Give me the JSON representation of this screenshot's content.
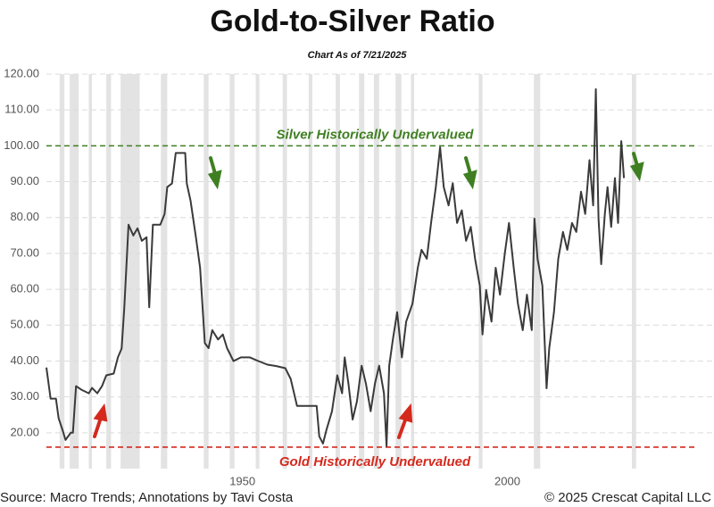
{
  "chart_data": {
    "type": "line",
    "title": "Gold-to-Silver Ratio",
    "subtitle": "Chart As of 7/21/2025",
    "source": "Source: Macro Trends; Annotations by Tavi Costa",
    "credit": "© 2025 Crescat Capital LLC",
    "xlim": [
      1913,
      2039
    ],
    "xticks": [
      1950,
      2000
    ],
    "ylim": [
      10,
      120
    ],
    "yticks": [
      {
        "value": 20,
        "label": "20.00"
      },
      {
        "value": 30,
        "label": "30.00"
      },
      {
        "value": 40,
        "label": "40.00"
      },
      {
        "value": 50,
        "label": "50.00"
      },
      {
        "value": 60,
        "label": "60.00"
      },
      {
        "value": 70,
        "label": "70.00"
      },
      {
        "value": 80,
        "label": "80.00"
      },
      {
        "value": 90,
        "label": "90.00"
      },
      {
        "value": 100,
        "label": "100.00"
      },
      {
        "value": 110,
        "label": "110.00"
      },
      {
        "value": 120,
        "label": "120.00"
      }
    ],
    "grid": true,
    "reference_lines": [
      {
        "value": 100,
        "label": "Silver Historically Undervalued",
        "color": "#3f7f22"
      },
      {
        "value": 16,
        "label": "Gold Historically Undervalued",
        "color": "#d42a1e"
      }
    ],
    "shaded_periods": [
      [
        1915.5,
        1916.4
      ],
      [
        1917.4,
        1919.1
      ],
      [
        1921.0,
        1921.6
      ],
      [
        1924.3,
        1925.2
      ],
      [
        1927.0,
        1930.6
      ],
      [
        1934.6,
        1935.8
      ],
      [
        1942.7,
        1943.6
      ],
      [
        1947.6,
        1948.5
      ],
      [
        1952.5,
        1953.2
      ],
      [
        1957.6,
        1958.4
      ],
      [
        1962.5,
        1963.2
      ],
      [
        1967.6,
        1968.4
      ],
      [
        1972.0,
        1973.0
      ],
      [
        1974.8,
        1975.8
      ],
      [
        1978.9,
        1980.0
      ],
      [
        1981.8,
        1982.4
      ],
      [
        1994.6,
        1995.3
      ],
      [
        2005.0,
        2006.2
      ],
      [
        2023.5,
        2024.3
      ]
    ],
    "x": [
      1913.0,
      1913.8,
      1914.8,
      1915.3,
      1916.0,
      1916.6,
      1917.6,
      1918.0,
      1918.6,
      1919.6,
      1921.0,
      1921.6,
      1922.6,
      1923.5,
      1924.3,
      1925.7,
      1926.5,
      1927.2,
      1927.7,
      1928.5,
      1929.4,
      1930.2,
      1931.0,
      1931.9,
      1932.4,
      1933.1,
      1934.5,
      1935.3,
      1935.8,
      1936.7,
      1937.4,
      1939.2,
      1939.5,
      1940.2,
      1941.2,
      1942.0,
      1942.9,
      1943.6,
      1944.3,
      1945.4,
      1946.3,
      1947.1,
      1948.3,
      1949.7,
      1951.4,
      1953.0,
      1954.7,
      1956.4,
      1958.1,
      1959.1,
      1960.3,
      1962.3,
      1964.0,
      1964.5,
      1965.2,
      1965.9,
      1966.9,
      1967.9,
      1968.8,
      1969.3,
      1970.0,
      1970.8,
      1971.6,
      1972.5,
      1973.3,
      1974.2,
      1975.0,
      1975.8,
      1976.7,
      1977.2,
      1977.7,
      1978.4,
      1979.2,
      1980.1,
      1980.9,
      1982.1,
      1983.1,
      1983.8,
      1984.8,
      1985.6,
      1986.5,
      1987.3,
      1988.0,
      1988.9,
      1989.7,
      1990.5,
      1991.4,
      1992.2,
      1993.1,
      1993.9,
      1994.8,
      1995.3,
      1996.0,
      1997.0,
      1997.8,
      1998.6,
      1999.5,
      2000.3,
      2001.2,
      2002.0,
      2002.9,
      2003.7,
      2004.6,
      2005.1,
      2005.7,
      2006.6,
      2007.4,
      2007.9,
      2008.8,
      2009.6,
      2010.5,
      2011.3,
      2012.2,
      2013.0,
      2013.9,
      2014.7,
      2015.5,
      2016.2,
      2016.7,
      2017.2,
      2017.7,
      2018.4,
      2018.9,
      2019.6,
      2020.3,
      2020.9,
      2021.5,
      2022.0
    ],
    "series": [
      {
        "name": "Gold-to-Silver Ratio",
        "color": "#3a3a3a",
        "values": [
          38.2,
          29.5,
          29.5,
          24,
          21,
          18,
          20,
          20,
          33,
          32,
          31,
          32.5,
          31,
          33,
          36,
          36.5,
          41,
          43.5,
          55,
          78,
          75,
          77,
          73.5,
          74.5,
          55,
          78,
          78,
          81,
          88.5,
          89.5,
          98,
          98,
          89.5,
          84.7,
          74.7,
          66,
          45,
          43.6,
          48.6,
          46,
          47.4,
          43.6,
          40,
          41,
          41,
          40,
          39,
          38.6,
          38,
          35,
          27.5,
          27.5,
          27.5,
          19,
          17,
          21,
          26,
          36,
          31,
          41,
          33.7,
          23.7,
          28.7,
          38.7,
          33.7,
          26,
          33.7,
          38.7,
          31,
          16.3,
          38.7,
          46,
          53.6,
          41,
          51,
          56,
          66,
          71,
          68.5,
          78.5,
          88.5,
          99.6,
          88.5,
          83.4,
          89.6,
          78.5,
          82,
          73.5,
          77.4,
          68.5,
          61,
          47.4,
          59.8,
          51,
          66,
          58.5,
          69.8,
          78.5,
          66,
          56,
          48.6,
          58.5,
          48.6,
          79.7,
          68.5,
          61,
          32.4,
          43.6,
          53.6,
          68.5,
          76,
          71,
          78.5,
          76,
          87.2,
          81,
          96,
          83.4,
          115.8,
          79.7,
          67,
          81,
          88.5,
          77.4,
          91,
          78.5,
          101.3,
          91
        ]
      }
    ]
  }
}
